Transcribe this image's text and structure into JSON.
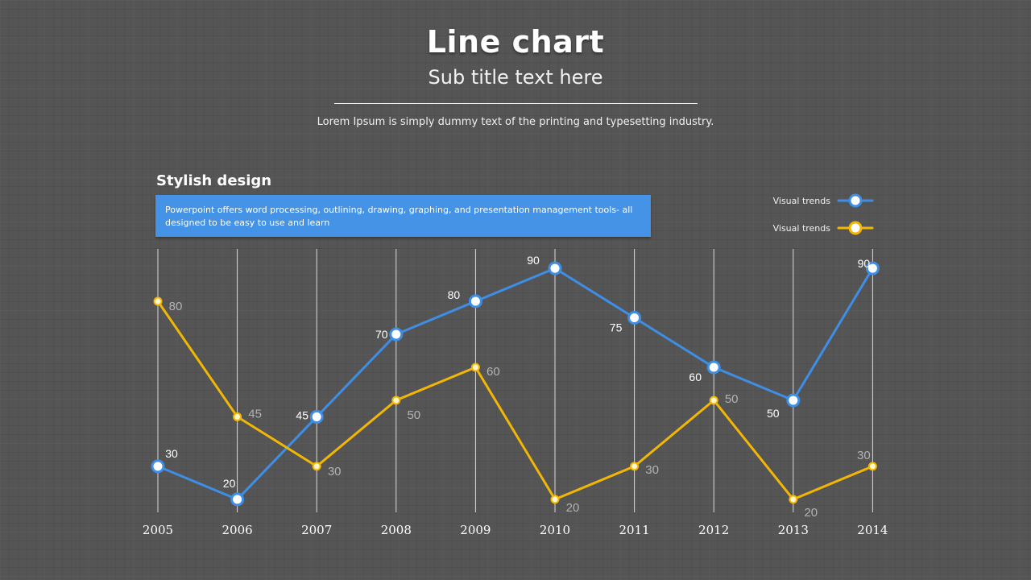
{
  "header": {
    "title": "Line chart",
    "subtitle": "Sub title text here",
    "tagline": "Lorem Ipsum is simply dummy text of the printing and typesetting industry."
  },
  "section": {
    "title": "Stylish design",
    "description": "Powerpoint offers word processing, outlining, drawing, graphing, and presentation management tools- all designed to be easy to use and learn"
  },
  "colors": {
    "blue": "#3f8ee6",
    "yellow": "#f2b705",
    "box": "#4593e6"
  },
  "chart_data": {
    "type": "line",
    "x": [
      "2005",
      "2006",
      "2007",
      "2008",
      "2009",
      "2010",
      "2011",
      "2012",
      "2013",
      "2014"
    ],
    "series": [
      {
        "name": "Visual trends",
        "color": "#3f8ee6",
        "values": [
          30,
          20,
          45,
          70,
          80,
          90,
          75,
          60,
          50,
          90
        ]
      },
      {
        "name": "Visual trends",
        "color": "#f2b705",
        "values": [
          80,
          45,
          30,
          50,
          60,
          20,
          30,
          50,
          20,
          30
        ]
      }
    ],
    "grid": "vertical",
    "legend": "top-right",
    "data_labels": true
  }
}
